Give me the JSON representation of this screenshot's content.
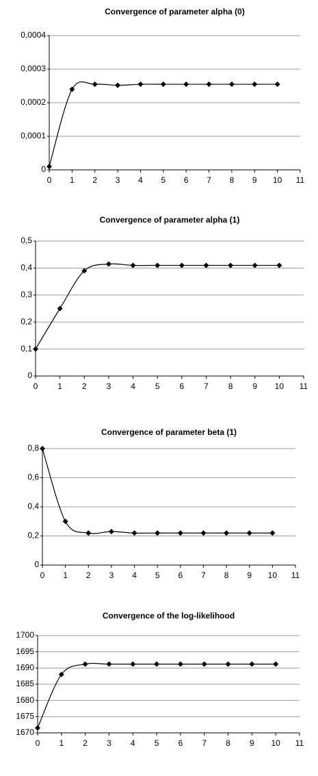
{
  "chart_data": [
    {
      "type": "line",
      "title": "Convergence of parameter alpha (0)",
      "x": [
        0,
        1,
        2,
        3,
        4,
        5,
        6,
        7,
        8,
        9,
        10
      ],
      "values": [
        1e-05,
        0.00024,
        0.000255,
        0.000252,
        0.000255,
        0.000255,
        0.000255,
        0.000255,
        0.000255,
        0.000255,
        0.000255
      ],
      "color": "#000000",
      "xlim": [
        0,
        11
      ],
      "xticks": [
        0,
        1,
        2,
        3,
        4,
        5,
        6,
        7,
        8,
        9,
        10,
        11
      ],
      "ylim": [
        0,
        0.0004
      ],
      "yticks": [
        0,
        {
          "value": 0.0001,
          "label": "0,0001"
        },
        {
          "value": 0.0002,
          "label": "0,0002"
        },
        {
          "value": 0.0003,
          "label": "0,0003"
        },
        {
          "value": 0.0004,
          "label": "0,0004"
        }
      ],
      "grid": true
    },
    {
      "type": "line",
      "title": "Convergence of parameter alpha (1)",
      "x": [
        0,
        1,
        2,
        3,
        4,
        5,
        6,
        7,
        8,
        9,
        10
      ],
      "values": [
        0.1,
        0.25,
        0.39,
        0.415,
        0.41,
        0.41,
        0.41,
        0.41,
        0.41,
        0.41,
        0.41
      ],
      "color": "#000000",
      "xlim": [
        0,
        11
      ],
      "xticks": [
        0,
        1,
        2,
        3,
        4,
        5,
        6,
        7,
        8,
        9,
        10,
        11
      ],
      "ylim": [
        0,
        0.5
      ],
      "yticks": [
        0,
        {
          "value": 0.1,
          "label": "0,1"
        },
        {
          "value": 0.2,
          "label": "0,2"
        },
        {
          "value": 0.3,
          "label": "0,3"
        },
        {
          "value": 0.4,
          "label": "0,4"
        },
        {
          "value": 0.5,
          "label": "0,5"
        }
      ],
      "grid": true
    },
    {
      "type": "line",
      "title": "Convergence of parameter beta (1)",
      "x": [
        0,
        1,
        2,
        3,
        4,
        5,
        6,
        7,
        8,
        9,
        10
      ],
      "values": [
        0.8,
        0.3,
        0.22,
        0.23,
        0.22,
        0.22,
        0.22,
        0.22,
        0.22,
        0.22,
        0.22
      ],
      "color": "#000000",
      "xlim": [
        0,
        11
      ],
      "xticks": [
        0,
        1,
        2,
        3,
        4,
        5,
        6,
        7,
        8,
        9,
        10,
        11
      ],
      "ylim": [
        0,
        0.8
      ],
      "yticks": [
        0,
        {
          "value": 0.2,
          "label": "0,2"
        },
        {
          "value": 0.4,
          "label": "0,4"
        },
        {
          "value": 0.6,
          "label": "0,6"
        },
        {
          "value": 0.8,
          "label": "0,8"
        }
      ],
      "grid": true
    },
    {
      "type": "line",
      "title": "Convergence of the log-likelihood",
      "x": [
        0,
        1,
        2,
        3,
        4,
        5,
        6,
        7,
        8,
        9,
        10
      ],
      "values": [
        1671.5,
        1688,
        1691.2,
        1691.2,
        1691.2,
        1691.2,
        1691.2,
        1691.2,
        1691.2,
        1691.2,
        1691.2
      ],
      "color": "#000000",
      "xlim": [
        0,
        11
      ],
      "xticks": [
        0,
        1,
        2,
        3,
        4,
        5,
        6,
        7,
        8,
        9,
        10,
        11
      ],
      "ylim": [
        1670,
        1700
      ],
      "yticks": [
        1670,
        1675,
        1680,
        1685,
        1690,
        1695,
        1700
      ],
      "grid": true
    }
  ]
}
